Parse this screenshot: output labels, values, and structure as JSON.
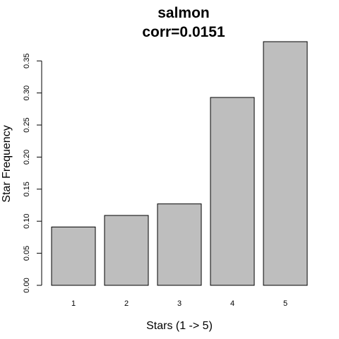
{
  "chart_data": {
    "type": "bar",
    "title": "salmon",
    "subtitle": "corr=0.0151",
    "xlabel": "Stars (1 -> 5)",
    "ylabel": "Star Frequency",
    "categories": [
      "1",
      "2",
      "3",
      "4",
      "5"
    ],
    "values": [
      0.091,
      0.109,
      0.127,
      0.293,
      0.38
    ],
    "ylim": [
      0,
      0.38
    ],
    "yticks": [
      "0.00",
      "0.05",
      "0.10",
      "0.15",
      "0.20",
      "0.25",
      "0.30",
      "0.35"
    ],
    "grid": false,
    "bar_color": "#bebebe"
  }
}
